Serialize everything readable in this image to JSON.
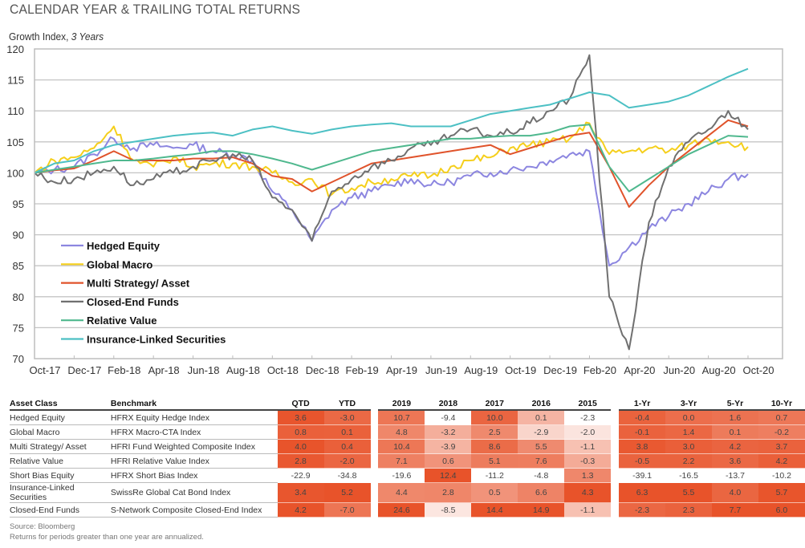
{
  "page": {
    "title": "CALENDAR YEAR & TRAILING TOTAL RETURNS",
    "subtitle_main": "Growth Index, ",
    "subtitle_italic": "3 Years"
  },
  "chart_data": {
    "type": "line",
    "title": "Growth Index, 3 Years",
    "xlabel": "",
    "ylabel": "",
    "ylim": [
      70,
      120
    ],
    "yticks": [
      70,
      75,
      80,
      85,
      90,
      95,
      100,
      105,
      110,
      115,
      120
    ],
    "xticks": [
      "Oct-17",
      "Dec-17",
      "Feb-18",
      "Apr-18",
      "Jun-18",
      "Aug-18",
      "Oct-18",
      "Dec-18",
      "Feb-19",
      "Apr-19",
      "Jun-19",
      "Aug-19",
      "Oct-19",
      "Dec-19",
      "Feb-20",
      "Apr-20",
      "Jun-20",
      "Aug-20",
      "Oct-20"
    ],
    "x_months": [
      "Oct-17",
      "Nov-17",
      "Dec-17",
      "Jan-18",
      "Feb-18",
      "Mar-18",
      "Apr-18",
      "May-18",
      "Jun-18",
      "Jul-18",
      "Aug-18",
      "Sep-18",
      "Oct-18",
      "Nov-18",
      "Dec-18",
      "Jan-19",
      "Feb-19",
      "Mar-19",
      "Apr-19",
      "May-19",
      "Jun-19",
      "Jul-19",
      "Aug-19",
      "Sep-19",
      "Oct-19",
      "Nov-19",
      "Dec-19",
      "Jan-20",
      "Feb-20",
      "Mar-20",
      "Apr-20",
      "May-20",
      "Jun-20",
      "Jul-20",
      "Aug-20",
      "Sep-20",
      "Oct-20"
    ],
    "grid": true,
    "legend_position": "bottom-left",
    "series": [
      {
        "name": "Hedged Equity",
        "color": "#8c86e0",
        "values": [
          100,
          100.5,
          101,
          103,
          105.5,
          104,
          104.5,
          104,
          104.5,
          103.5,
          103,
          102,
          97,
          94,
          89,
          94,
          96,
          97,
          98,
          99,
          98,
          98.5,
          99.5,
          100,
          100.5,
          101,
          102,
          103,
          103.5,
          85,
          88,
          91,
          93,
          95,
          97,
          99,
          99.8
        ]
      },
      {
        "name": "Global Macro",
        "color": "#f5cf1c",
        "values": [
          100,
          102,
          102.5,
          104,
          107.5,
          102,
          101,
          102.5,
          101,
          101.5,
          101.5,
          101,
          100,
          98.5,
          99,
          96.5,
          97.5,
          98.5,
          99,
          99.5,
          99.5,
          101,
          102,
          102.5,
          104,
          104.5,
          105,
          105.5,
          108,
          103,
          103.5,
          104,
          103.5,
          104.5,
          105.5,
          105,
          104.2
        ]
      },
      {
        "name": "Multi Strategy/ Asset",
        "color": "#e0532b",
        "values": [
          100,
          100.4,
          100.7,
          102,
          103.5,
          102,
          102,
          102,
          102.3,
          102.3,
          102.5,
          101.5,
          99.5,
          99,
          97,
          98.5,
          100,
          101.5,
          102,
          102.5,
          103,
          103.5,
          104,
          104.5,
          103,
          104,
          105,
          106,
          106.5,
          101,
          94.5,
          98,
          101,
          103.5,
          106,
          108.5,
          107.5
        ]
      },
      {
        "name": "Closed-End Funds",
        "color": "#707070",
        "values": [
          100,
          98.5,
          99,
          100,
          101,
          98,
          99,
          100,
          101,
          102,
          103,
          102,
          96,
          94,
          89,
          97,
          99,
          101,
          102,
          104,
          104.5,
          106,
          107,
          106,
          106.5,
          108,
          110,
          112,
          119,
          80,
          71.5,
          92,
          101,
          105,
          107,
          110,
          107
        ]
      },
      {
        "name": "Relative Value",
        "color": "#4fb88e",
        "values": [
          100,
          100.5,
          101,
          101.5,
          102,
          102,
          102.3,
          102.7,
          103,
          103.5,
          103.5,
          103,
          102.3,
          101.5,
          100.5,
          101.5,
          102.5,
          103.5,
          104,
          104.5,
          105,
          105.5,
          105.5,
          105.8,
          106,
          106,
          106.5,
          107.5,
          107.8,
          101,
          97,
          99,
          101,
          103,
          104.5,
          106,
          105.8
        ]
      },
      {
        "name": "Insurance-Linked Securities",
        "color": "#4cc0c4",
        "values": [
          100,
          101.5,
          102,
          103.5,
          104.5,
          105,
          105.5,
          106,
          106.3,
          106.5,
          106,
          107,
          107.5,
          106.8,
          106.3,
          107,
          107.5,
          107.8,
          108,
          107.5,
          107.5,
          107.5,
          108.5,
          109.5,
          110,
          110.5,
          111,
          112,
          113,
          112.5,
          110.5,
          111,
          111.5,
          112.5,
          114,
          115.5,
          116.8
        ]
      }
    ]
  },
  "table": {
    "headers": {
      "asset_class": "Asset Class",
      "benchmark": "Benchmark",
      "period": [
        "QTD",
        "YTD"
      ],
      "calendar": [
        "2019",
        "2018",
        "2017",
        "2016",
        "2015"
      ],
      "trailing": [
        "1-Yr",
        "3-Yr",
        "5-Yr",
        "10-Yr"
      ]
    },
    "rows": [
      {
        "asset_class": "Hedged Equity",
        "benchmark": "HFRX Equity Hedge Index",
        "period": [
          "3.6",
          "-3.0"
        ],
        "calendar": [
          "10.7",
          "-9.4",
          "10.0",
          "0.1",
          "-2.3"
        ],
        "trailing": [
          "-0.4",
          "0.0",
          "1.6",
          "0.7"
        ]
      },
      {
        "asset_class": "Global Macro",
        "benchmark": "HFRX Macro-CTA Index",
        "period": [
          "0.8",
          "0.1"
        ],
        "calendar": [
          "4.8",
          "-3.2",
          "2.5",
          "-2.9",
          "-2.0"
        ],
        "trailing": [
          "-0.1",
          "1.4",
          "0.1",
          "-0.2"
        ]
      },
      {
        "asset_class": "Multi Strategy/ Asset",
        "benchmark": "HFRI Fund Weighted Composite Index",
        "period": [
          "4.0",
          "0.4"
        ],
        "calendar": [
          "10.4",
          "-3.9",
          "8.6",
          "5.5",
          "-1.1"
        ],
        "trailing": [
          "3.8",
          "3.0",
          "4.2",
          "3.7"
        ]
      },
      {
        "asset_class": "Relative Value",
        "benchmark": "HFRI Relative Value Index",
        "period": [
          "2.8",
          "-2.0"
        ],
        "calendar": [
          "7.1",
          "0.6",
          "5.1",
          "7.6",
          "-0.3"
        ],
        "trailing": [
          "-0.5",
          "2.2",
          "3.6",
          "4.2"
        ]
      },
      {
        "asset_class": "Short Bias Equity",
        "benchmark": "HFRX Short Bias Index",
        "period": [
          "-22.9",
          "-34.8"
        ],
        "calendar": [
          "-19.6",
          "12.4",
          "-11.2",
          "-4.8",
          "1.3"
        ],
        "trailing": [
          "-39.1",
          "-16.5",
          "-13.7",
          "-10.2"
        ]
      },
      {
        "asset_class": "Insurance-Linked Securities",
        "benchmark": "SwissRe Global Cat Bond Index",
        "period": [
          "3.4",
          "5.2"
        ],
        "calendar": [
          "4.4",
          "2.8",
          "0.5",
          "6.6",
          "4.3"
        ],
        "trailing": [
          "6.3",
          "5.5",
          "4.0",
          "5.7"
        ]
      },
      {
        "asset_class": "Closed-End Funds",
        "benchmark": "S-Network Composite Closed-End Index",
        "period": [
          "4.2",
          "-7.0"
        ],
        "calendar": [
          "24.6",
          "-8.5",
          "14.4",
          "14.9",
          "-1.1"
        ],
        "trailing": [
          "-2.3",
          "2.3",
          "7.7",
          "6.0"
        ]
      }
    ],
    "heat_colors": {
      "low": "#ffffff",
      "high": "#e8532a"
    }
  },
  "footnotes": {
    "source": "Source: Bloomberg",
    "note": "Returns for periods greater than one year are annualized."
  }
}
